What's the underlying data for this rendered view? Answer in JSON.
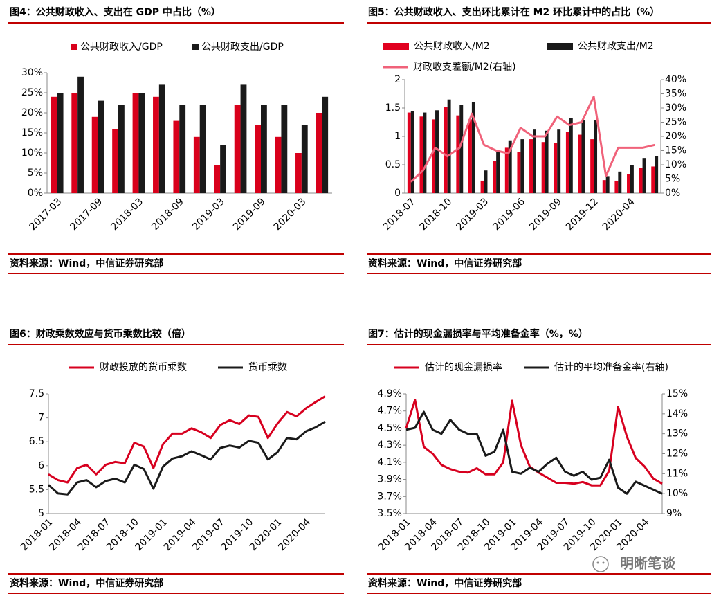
{
  "chart_data": [
    {
      "type": "bar",
      "title": "图4：公共财政收入、支出在 GDP 中占比（%）",
      "categories": [
        "2017-03",
        null,
        "2017-09",
        null,
        "2018-03",
        null,
        "2018-09",
        null,
        "2019-03",
        null,
        "2019-09",
        null,
        "2020-03",
        null
      ],
      "series": [
        {
          "name": "公共财政收入/GDP",
          "color": "#d9001b",
          "values": [
            24,
            25,
            19,
            16,
            25,
            24,
            18,
            14,
            7,
            22,
            17,
            14,
            10,
            20
          ]
        },
        {
          "name": "公共财政支出/GDP",
          "color": "#1a1a1a",
          "values": [
            25,
            29,
            23,
            22,
            25,
            27,
            22,
            22,
            12,
            27,
            22,
            22,
            17,
            24
          ]
        }
      ],
      "ylim": [
        0,
        30
      ],
      "yticks": [
        {
          "value": 0,
          "label": "0%"
        },
        {
          "value": 5,
          "label": "5%"
        },
        {
          "value": 10,
          "label": "10%"
        },
        {
          "value": 15,
          "label": "15%"
        },
        {
          "value": 20,
          "label": "20%"
        },
        {
          "value": 25,
          "label": "25%"
        },
        {
          "value": 30,
          "label": "30%"
        }
      ],
      "source": "资料来源：Wind，中信证券研究部"
    },
    {
      "type": "combo",
      "title": "图5：公共财政收入、支出环比累计在 M2 环比累计中的占比（%）",
      "categories": [
        "2018-07",
        null,
        null,
        "2018-10",
        null,
        null,
        "2019-03",
        null,
        null,
        "2019-06",
        null,
        null,
        "2019-09",
        null,
        null,
        "2019-12",
        null,
        null,
        "2020-04",
        null,
        null
      ],
      "series": [
        {
          "name": "公共财政收入/M2",
          "type": "bar",
          "color": "#e1001f",
          "values": [
            1.42,
            1.35,
            1.3,
            1.52,
            1.37,
            1.3,
            0.22,
            0.57,
            0.8,
            0.73,
            0.95,
            0.9,
            0.88,
            1.08,
            1.03,
            0.95,
            0.23,
            0.22,
            0.33,
            0.45,
            0.47
          ]
        },
        {
          "name": "公共财政支出/M2",
          "type": "bar",
          "color": "#1a1a1a",
          "values": [
            1.45,
            1.42,
            1.46,
            1.65,
            1.55,
            1.6,
            0.4,
            0.73,
            0.93,
            0.95,
            1.12,
            1.1,
            1.12,
            1.32,
            1.28,
            1.28,
            0.3,
            0.38,
            0.5,
            0.62,
            0.65
          ]
        },
        {
          "name": "财政收支差额/M2(右轴)",
          "type": "line",
          "axis": "y2",
          "color": "#f0627a",
          "values": [
            4,
            8,
            16,
            13,
            16,
            28,
            17,
            15,
            14,
            23,
            20,
            20,
            27,
            24,
            25,
            34,
            6,
            16,
            16,
            16,
            17
          ]
        }
      ],
      "ylim": [
        0,
        2
      ],
      "yticks": [
        0,
        0.5,
        1,
        1.5,
        2
      ],
      "y2lim": [
        0,
        40
      ],
      "y2ticks": [
        {
          "value": 0,
          "label": "0%"
        },
        {
          "value": 5,
          "label": "5%"
        },
        {
          "value": 10,
          "label": "10%"
        },
        {
          "value": 15,
          "label": "15%"
        },
        {
          "value": 20,
          "label": "20%"
        },
        {
          "value": 25,
          "label": "25%"
        },
        {
          "value": 30,
          "label": "30%"
        },
        {
          "value": 35,
          "label": "35%"
        },
        {
          "value": 40,
          "label": "40%"
        }
      ],
      "source": "资料来源：Wind，中信证券研究部"
    },
    {
      "type": "line",
      "title": "图6：财政乘数效应与货币乘数比较（倍）",
      "categories": [
        "2018-01",
        null,
        null,
        "2018-04",
        null,
        null,
        "2018-07",
        null,
        null,
        "2018-10",
        null,
        null,
        "2019-01",
        null,
        null,
        "2019-04",
        null,
        null,
        "2019-07",
        null,
        null,
        "2019-10",
        null,
        null,
        "2020-01",
        null,
        null,
        "2020-04",
        null,
        null
      ],
      "series": [
        {
          "name": "财政投放的货币乘数",
          "color": "#d7001f",
          "values": [
            5.82,
            5.7,
            5.65,
            5.95,
            6.02,
            5.82,
            6.02,
            6.08,
            6.05,
            6.48,
            6.4,
            5.95,
            6.45,
            6.67,
            6.67,
            6.78,
            6.7,
            6.58,
            6.85,
            6.95,
            6.87,
            7.05,
            7.02,
            6.58,
            6.88,
            7.12,
            7.03,
            7.2,
            7.33,
            7.45
          ]
        },
        {
          "name": "货币乘数",
          "color": "#1a1a1a",
          "values": [
            5.6,
            5.42,
            5.4,
            5.65,
            5.7,
            5.55,
            5.68,
            5.73,
            5.65,
            6.02,
            5.93,
            5.52,
            5.98,
            6.15,
            6.2,
            6.3,
            6.22,
            6.13,
            6.37,
            6.42,
            6.38,
            6.52,
            6.48,
            6.13,
            6.28,
            6.58,
            6.55,
            6.72,
            6.8,
            6.92
          ]
        }
      ],
      "ylim": [
        5,
        7.5
      ],
      "yticks": [
        5,
        5.5,
        6,
        6.5,
        7,
        7.5
      ],
      "source": "资料来源：Wind，中信证券研究部"
    },
    {
      "type": "line",
      "title": "图7：估计的现金漏损率与平均准备金率（%，%）",
      "categories": [
        "2018-01",
        null,
        null,
        "2018-04",
        null,
        null,
        "2018-07",
        null,
        null,
        "2018-10",
        null,
        null,
        "2019-01",
        null,
        null,
        "2019-04",
        null,
        null,
        "2019-07",
        null,
        null,
        "2019-10",
        null,
        null,
        "2020-01",
        null,
        null,
        "2020-04",
        null,
        null
      ],
      "series": [
        {
          "name": "估计的现金漏损率",
          "color": "#d7001f",
          "values": [
            4.5,
            4.83,
            4.28,
            4.2,
            4.07,
            4.02,
            3.99,
            3.98,
            4.03,
            3.96,
            3.96,
            4.1,
            4.82,
            4.3,
            4.05,
            3.98,
            3.92,
            3.86,
            3.86,
            3.85,
            3.87,
            3.83,
            3.83,
            4.0,
            4.75,
            4.4,
            4.15,
            4.05,
            3.91,
            3.85
          ]
        },
        {
          "name": "估计的平均准备金率(右轴)",
          "axis": "y2",
          "color": "#1a1a1a",
          "values": [
            13.2,
            13.3,
            14.1,
            13.2,
            13.0,
            13.7,
            13.2,
            13.0,
            13.0,
            11.9,
            12.1,
            13.2,
            11.1,
            11.0,
            11.3,
            11.1,
            11.5,
            11.8,
            11.1,
            10.9,
            11.1,
            10.7,
            10.8,
            11.7,
            10.3,
            10.0,
            10.6,
            10.4,
            10.2,
            10.0
          ]
        }
      ],
      "ylim": [
        3.5,
        4.9
      ],
      "yticks": [
        {
          "value": 3.5,
          "label": "3.5%"
        },
        {
          "value": 3.7,
          "label": "3.7%"
        },
        {
          "value": 3.9,
          "label": "3.9%"
        },
        {
          "value": 4.1,
          "label": "4.1%"
        },
        {
          "value": 4.3,
          "label": "4.3%"
        },
        {
          "value": 4.5,
          "label": "4.5%"
        },
        {
          "value": 4.7,
          "label": "4.7%"
        },
        {
          "value": 4.9,
          "label": "4.9%"
        }
      ],
      "y2lim": [
        9,
        15
      ],
      "y2ticks": [
        {
          "value": 9,
          "label": "9%"
        },
        {
          "value": 10,
          "label": "10%"
        },
        {
          "value": 11,
          "label": "11%"
        },
        {
          "value": 12,
          "label": "12%"
        },
        {
          "value": 13,
          "label": "13%"
        },
        {
          "value": 14,
          "label": "14%"
        },
        {
          "value": 15,
          "label": "15%"
        }
      ],
      "source": "资料来源：Wind，中信证券研究部"
    }
  ],
  "watermark": "明晰笔谈"
}
